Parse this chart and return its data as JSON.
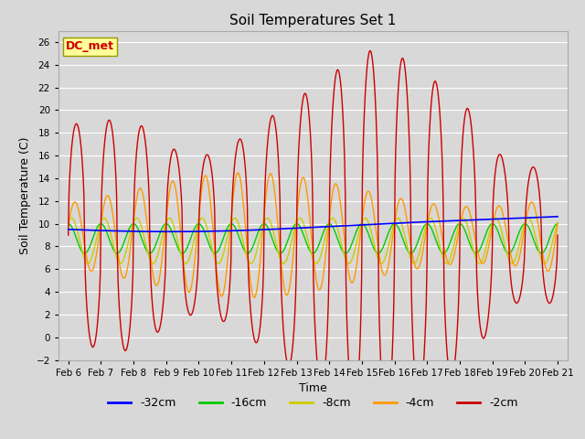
{
  "title": "Soil Temperatures Set 1",
  "xlabel": "Time",
  "ylabel": "Soil Temperature (C)",
  "ylim": [
    -2,
    27
  ],
  "yticks": [
    -2,
    0,
    2,
    4,
    6,
    8,
    10,
    12,
    14,
    16,
    18,
    20,
    22,
    24,
    26
  ],
  "xlim_days": [
    5.7,
    21.3
  ],
  "xtick_labels": [
    "Feb 6",
    "Feb 7",
    "Feb 8",
    "Feb 9",
    "Feb 10",
    "Feb 11",
    "Feb 12",
    "Feb 13",
    "Feb 14",
    "Feb 15",
    "Feb 16",
    "Feb 17",
    "Feb 18",
    "Feb 19",
    "Feb 20",
    "Feb 21"
  ],
  "xtick_positions": [
    6,
    7,
    8,
    9,
    10,
    11,
    12,
    13,
    14,
    15,
    16,
    17,
    18,
    19,
    20,
    21
  ],
  "annotation_text": "DC_met",
  "annotation_color": "#cc0000",
  "annotation_bg": "#ffff99",
  "annotation_edge": "#999900",
  "colors": {
    "-32cm": "#0000ff",
    "-16cm": "#00cc00",
    "-8cm": "#cccc00",
    "-4cm": "#ff9900",
    "-2cm": "#cc0000"
  },
  "bg_color": "#d8d8d8",
  "plot_bg": "#d8d8d8",
  "grid_color": "#ffffff"
}
